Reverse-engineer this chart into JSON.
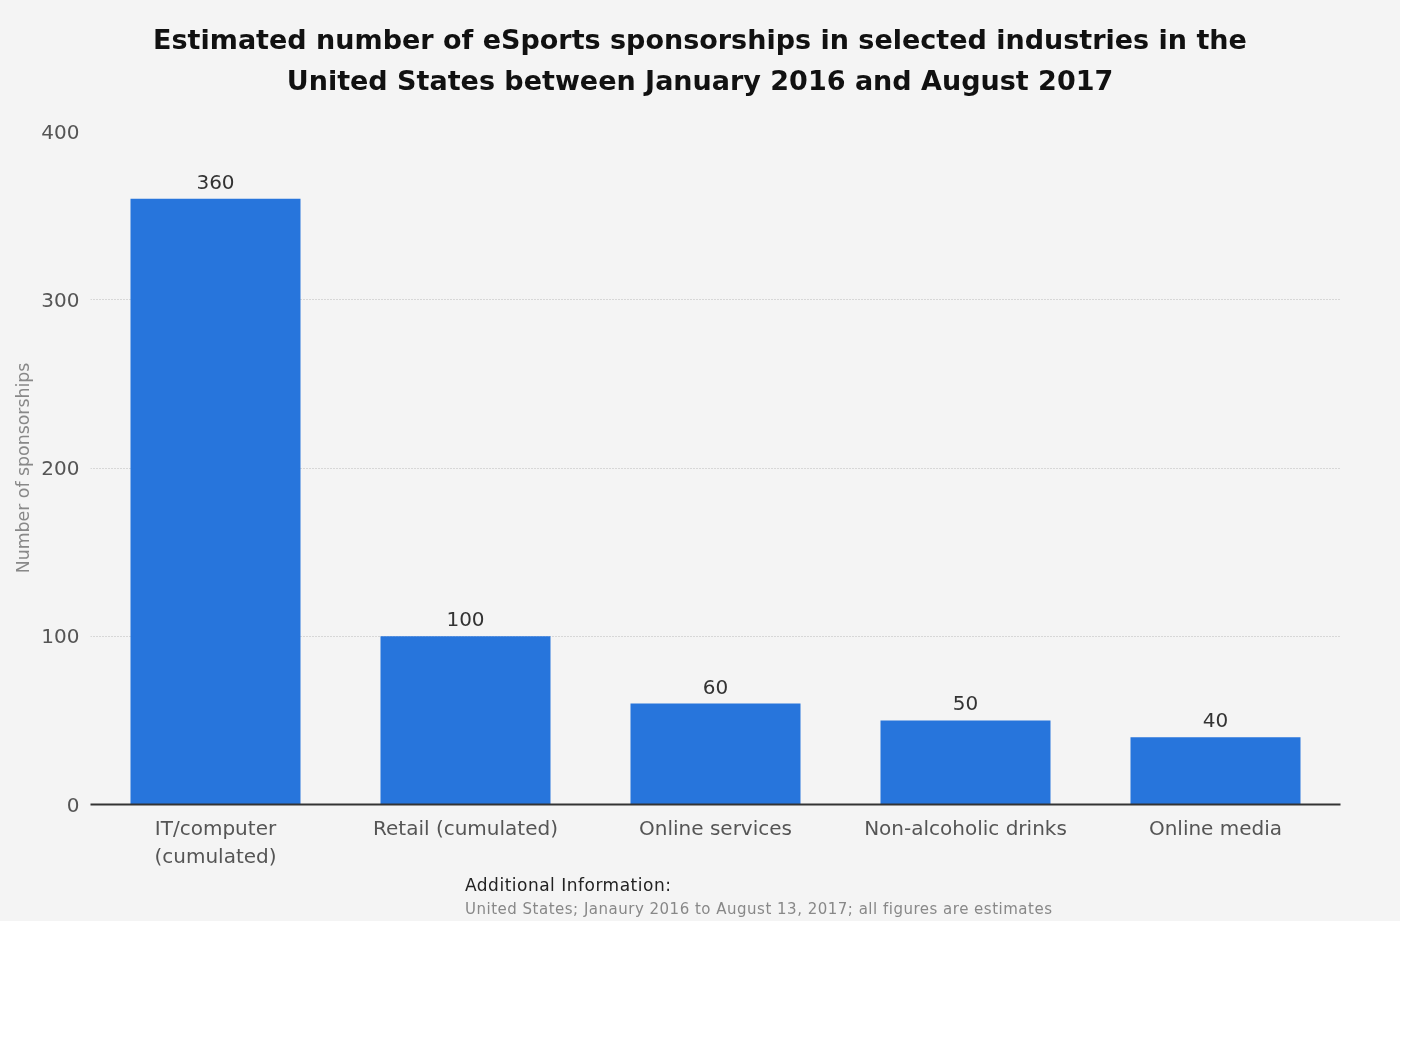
{
  "chart_data": {
    "type": "bar",
    "title": "Estimated number of eSports sponsorships in selected industries in the United States between January 2016 and August 2017",
    "ylabel": "Number of sponsorships",
    "categories": [
      "IT/computer (cumulated)",
      "Retail (cumulated)",
      "Online services",
      "Non-alcoholic drinks",
      "Online media"
    ],
    "values": [
      360,
      100,
      60,
      50,
      40
    ],
    "color": "#2775dc",
    "ylim": [
      0,
      400
    ],
    "yticks": [
      0,
      100,
      200,
      300,
      400
    ],
    "grid": "y",
    "data_labels": true,
    "annotations": [
      "Additional Information:",
      "United States; Janaury 2016 to August 13, 2017; all figures are estimates"
    ]
  }
}
